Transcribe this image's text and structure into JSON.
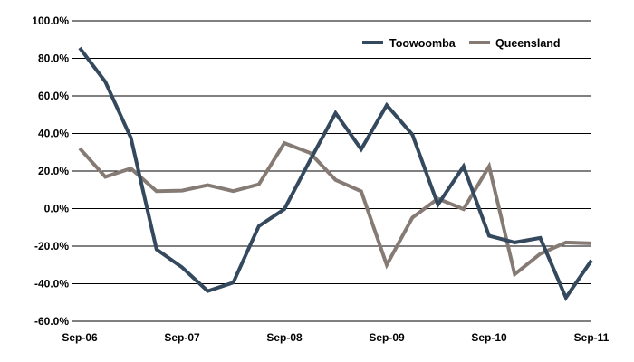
{
  "chart_data": {
    "type": "line",
    "title": "",
    "xlabel": "",
    "ylabel": "",
    "ylim": [
      -60,
      100
    ],
    "y_ticks": [
      100,
      80,
      60,
      40,
      20,
      0,
      -20,
      -40,
      -60
    ],
    "y_tick_labels": [
      "100.0%",
      "80.0%",
      "60.0%",
      "40.0%",
      "20.0%",
      "0.0%",
      "-20.0%",
      "-40.0%",
      "-60.0%"
    ],
    "x_tick_labels": [
      "Sep-06",
      "Sep-07",
      "Sep-08",
      "Sep-09",
      "Sep-10",
      "Sep-11"
    ],
    "x_tick_every": 4,
    "point_count": 21,
    "grid": "horizontal",
    "legend_position": "top-right",
    "series": [
      {
        "name": "Toowoomba",
        "color": "#34495e",
        "values": [
          85.6,
          67.5,
          37.7,
          -21.7,
          -31.3,
          -43.9,
          -39.4,
          -9.3,
          -0.3,
          25.7,
          50.9,
          31.6,
          55.1,
          39.4,
          2.1,
          22.5,
          -14.5,
          -18.0,
          -15.6,
          -47.4,
          -27.6
        ]
      },
      {
        "name": "Queensland",
        "color": "#857b74",
        "values": [
          32.1,
          16.9,
          21.4,
          9.3,
          9.6,
          12.5,
          9.3,
          12.9,
          34.9,
          29.7,
          15.3,
          9.2,
          -30.0,
          -4.8,
          5.3,
          -0.3,
          22.5,
          -35.0,
          -24.1,
          -18.0,
          -18.5
        ]
      }
    ]
  }
}
